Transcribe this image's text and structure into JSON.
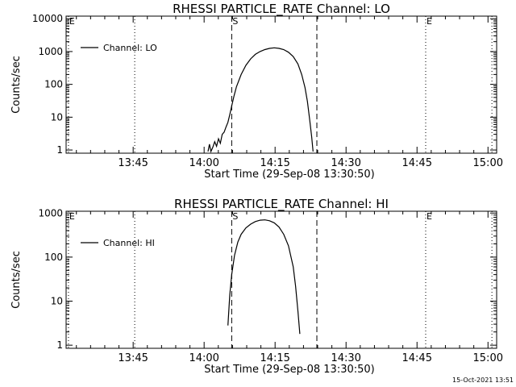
{
  "footer": {
    "timestamp": "15-Oct-2021 13:51"
  },
  "chart_data": [
    {
      "type": "line",
      "title": "RHESSI PARTICLE_RATE Channel: LO",
      "xlabel": "Start Time (29-Sep-08 13:30:50)",
      "ylabel": "Counts/sec",
      "y_scale": "log",
      "x_units": "minutes after 13:30:50",
      "xlim": [
        0,
        91
      ],
      "ylim": [
        0.8,
        12000
      ],
      "xticks": [
        {
          "x": 14.17,
          "label": "13:45"
        },
        {
          "x": 29.17,
          "label": "14:00"
        },
        {
          "x": 44.17,
          "label": "14:15"
        },
        {
          "x": 59.17,
          "label": "14:30"
        },
        {
          "x": 74.17,
          "label": "14:45"
        },
        {
          "x": 89.17,
          "label": "15:00"
        }
      ],
      "yticks": [
        {
          "y": 1,
          "label": "1"
        },
        {
          "y": 10,
          "label": "10"
        },
        {
          "y": 100,
          "label": "100"
        },
        {
          "y": 1000,
          "label": "1000"
        },
        {
          "y": 10000,
          "label": "10000"
        }
      ],
      "markers": [
        {
          "x": 0.5,
          "label": "E",
          "style": "dotted"
        },
        {
          "x": 14.5,
          "label": "",
          "style": "dotted"
        },
        {
          "x": 35.0,
          "label": "S",
          "style": "dashed"
        },
        {
          "x": 53.0,
          "label": "",
          "style": "dashed"
        },
        {
          "x": 76.0,
          "label": "E",
          "style": "dotted"
        },
        {
          "x": 90.0,
          "label": "",
          "style": "dotted"
        }
      ],
      "legend": {
        "label": "Channel: LO",
        "position": "top-left"
      },
      "series": [
        {
          "name": "Channel: LO",
          "points": [
            [
              30.0,
              0.9
            ],
            [
              30.3,
              1.5
            ],
            [
              30.6,
              0.9
            ],
            [
              31.0,
              1.2
            ],
            [
              31.4,
              1.8
            ],
            [
              31.8,
              1.3
            ],
            [
              32.2,
              2.2
            ],
            [
              32.6,
              1.6
            ],
            [
              33.0,
              3.0
            ],
            [
              33.4,
              3.5
            ],
            [
              33.8,
              5.0
            ],
            [
              34.2,
              7
            ],
            [
              34.6,
              12
            ],
            [
              35.0,
              22
            ],
            [
              35.5,
              45
            ],
            [
              36.0,
              85
            ],
            [
              37.0,
              200
            ],
            [
              38.0,
              380
            ],
            [
              39.0,
              600
            ],
            [
              40.0,
              820
            ],
            [
              41.0,
              1000
            ],
            [
              42.0,
              1150
            ],
            [
              43.0,
              1250
            ],
            [
              44.0,
              1300
            ],
            [
              45.0,
              1250
            ],
            [
              46.0,
              1150
            ],
            [
              47.0,
              950
            ],
            [
              48.0,
              700
            ],
            [
              49.0,
              420
            ],
            [
              49.8,
              200
            ],
            [
              50.5,
              80
            ],
            [
              51.0,
              30
            ],
            [
              51.5,
              8
            ],
            [
              51.9,
              2.5
            ],
            [
              52.2,
              0.9
            ]
          ]
        }
      ]
    },
    {
      "type": "line",
      "title": "RHESSI PARTICLE_RATE Channel: HI",
      "xlabel": "Start Time (29-Sep-08 13:30:50)",
      "ylabel": "Counts/sec",
      "y_scale": "log",
      "x_units": "minutes after 13:30:50",
      "xlim": [
        0,
        91
      ],
      "ylim": [
        0.85,
        1100
      ],
      "xticks": [
        {
          "x": 14.17,
          "label": "13:45"
        },
        {
          "x": 29.17,
          "label": "14:00"
        },
        {
          "x": 44.17,
          "label": "14:15"
        },
        {
          "x": 59.17,
          "label": "14:30"
        },
        {
          "x": 74.17,
          "label": "14:45"
        },
        {
          "x": 89.17,
          "label": "15:00"
        }
      ],
      "yticks": [
        {
          "y": 1,
          "label": "1"
        },
        {
          "y": 10,
          "label": "10"
        },
        {
          "y": 100,
          "label": "100"
        },
        {
          "y": 1000,
          "label": "1000"
        }
      ],
      "markers": [
        {
          "x": 0.5,
          "label": "E",
          "style": "dotted"
        },
        {
          "x": 14.5,
          "label": "",
          "style": "dotted"
        },
        {
          "x": 35.0,
          "label": "S",
          "style": "dashed"
        },
        {
          "x": 53.0,
          "label": "",
          "style": "dashed"
        },
        {
          "x": 76.0,
          "label": "E",
          "style": "dotted"
        },
        {
          "x": 90.0,
          "label": "",
          "style": "dotted"
        }
      ],
      "legend": {
        "label": "Channel: HI",
        "position": "top-left"
      },
      "series": [
        {
          "name": "Channel: HI",
          "points": [
            [
              34.2,
              2.8
            ],
            [
              34.6,
              14
            ],
            [
              35.0,
              40
            ],
            [
              35.6,
              110
            ],
            [
              36.3,
              220
            ],
            [
              37.0,
              330
            ],
            [
              38.0,
              460
            ],
            [
              39.0,
              560
            ],
            [
              40.0,
              640
            ],
            [
              41.0,
              690
            ],
            [
              42.0,
              700
            ],
            [
              43.0,
              670
            ],
            [
              44.0,
              600
            ],
            [
              45.0,
              480
            ],
            [
              46.0,
              330
            ],
            [
              47.0,
              180
            ],
            [
              48.0,
              60
            ],
            [
              48.5,
              22
            ],
            [
              49.0,
              6
            ],
            [
              49.4,
              1.8
            ]
          ]
        }
      ]
    }
  ]
}
